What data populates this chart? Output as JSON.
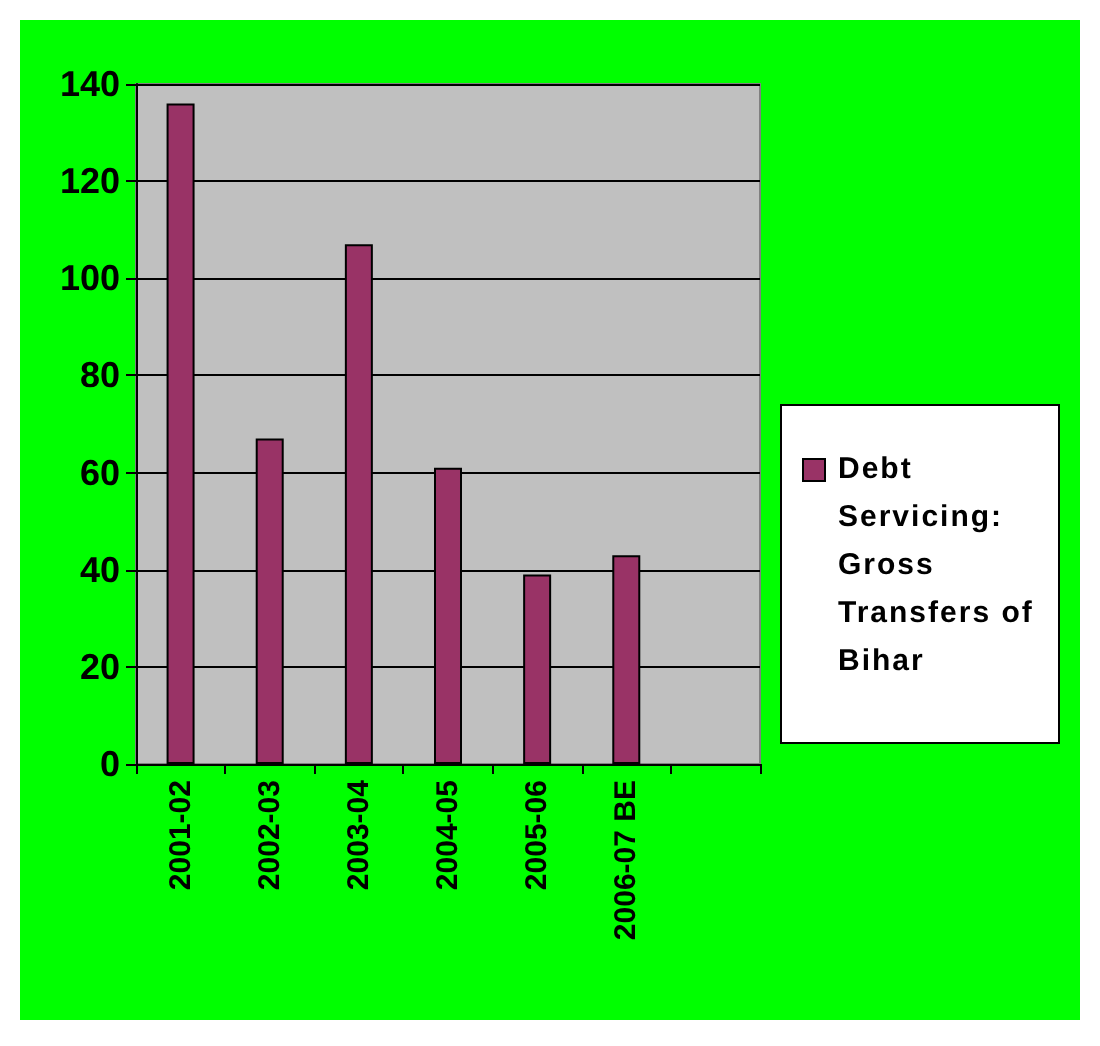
{
  "chart_data": {
    "type": "bar",
    "categories": [
      "2001-02",
      "2002-03",
      "2003-04",
      "2004-05",
      "2005-06",
      "2006-07 BE",
      null
    ],
    "series": [
      {
        "name": "Debt Servicing: Gross Transfers of Bihar",
        "color": "#993366",
        "values": [
          136,
          67,
          107,
          61,
          39,
          43,
          null
        ]
      }
    ],
    "ylim": [
      0,
      140
    ],
    "yticks": [
      0,
      20,
      40,
      60,
      80,
      100,
      120,
      140
    ],
    "grid": "y",
    "legend": "right"
  }
}
